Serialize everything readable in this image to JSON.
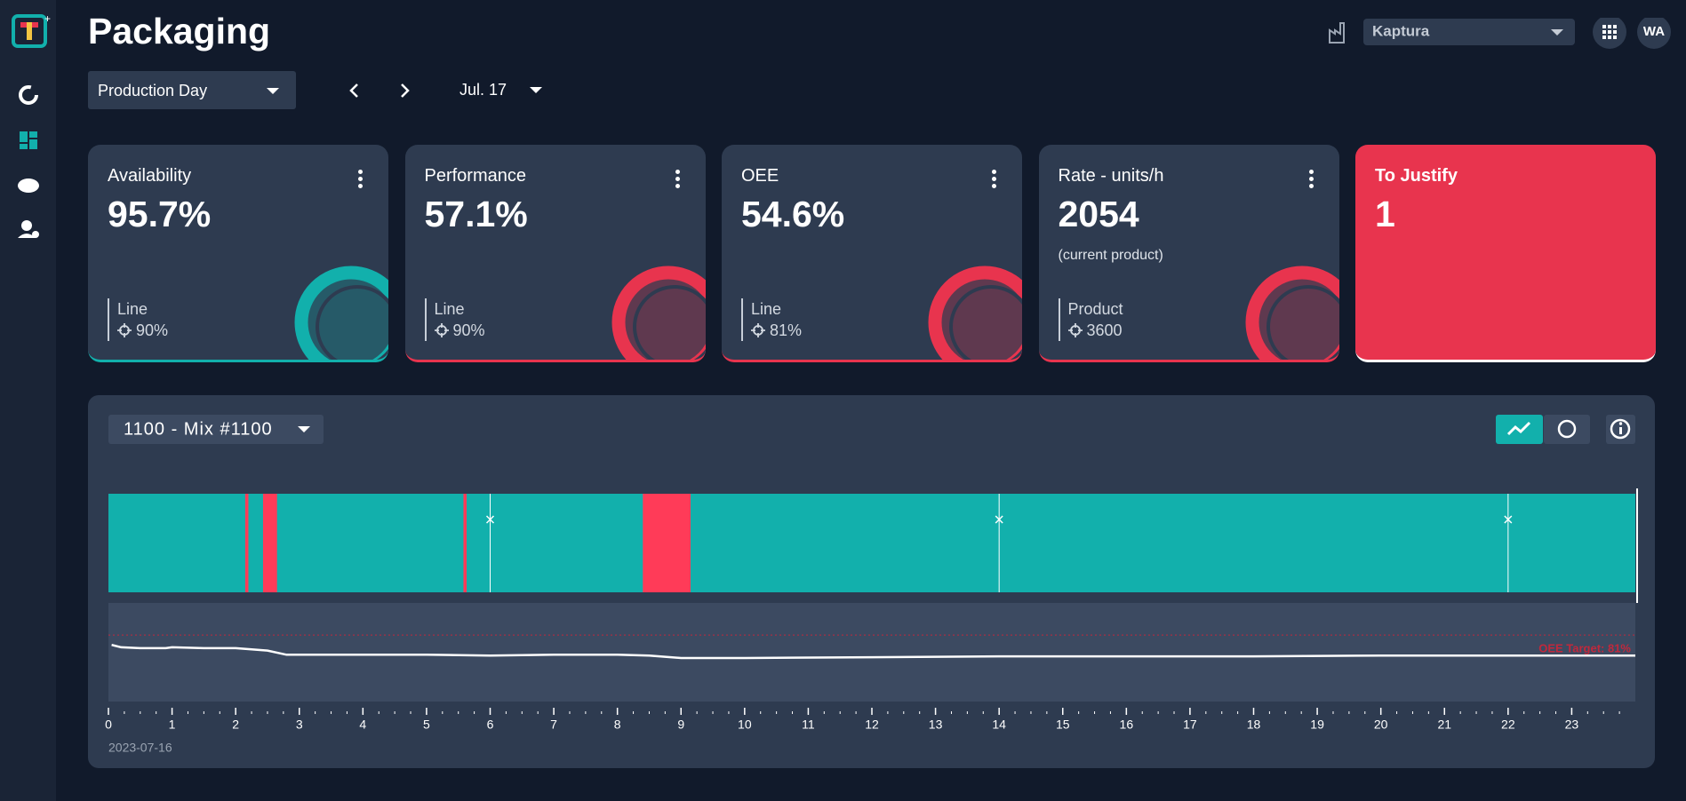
{
  "header": {
    "title": "Packaging",
    "site": "Kaptura",
    "user": "WA"
  },
  "filters": {
    "period": "Production Day",
    "date": "Jul. 17"
  },
  "cards": [
    {
      "title": "Availability",
      "value": "95.7%",
      "ref_label": "Line",
      "ref_value": "90%",
      "color": "#12b0ac"
    },
    {
      "title": "Performance",
      "value": "57.1%",
      "ref_label": "Line",
      "ref_value": "90%",
      "color": "#e8344e"
    },
    {
      "title": "OEE",
      "value": "54.6%",
      "ref_label": "Line",
      "ref_value": "81%",
      "color": "#e8344e"
    },
    {
      "title": "Rate - units/h",
      "value": "2054",
      "note": "(current product)",
      "ref_label": "Product",
      "ref_value": "3600",
      "color": "#e8344e"
    }
  ],
  "justify": {
    "title": "To Justify",
    "value": "1"
  },
  "panel": {
    "product": "1100 - Mix #1100",
    "date": "2023-07-16",
    "target_label": "OEE Target: 81%",
    "target": 81,
    "xlim": [
      0,
      24
    ],
    "xticks": [
      0,
      1,
      2,
      3,
      4,
      5,
      6,
      7,
      8,
      9,
      10,
      11,
      12,
      13,
      14,
      15,
      16,
      17,
      18,
      19,
      20,
      21,
      22,
      23
    ],
    "ylim": [
      0,
      120
    ],
    "run_color": "#12b0ac",
    "stop_color": "#ff3b58",
    "stops": [
      {
        "start": 2.15,
        "end": 2.2
      },
      {
        "start": 2.43,
        "end": 2.65
      },
      {
        "start": 5.58,
        "end": 5.63
      },
      {
        "start": 8.4,
        "end": 9.15
      }
    ],
    "markers": [
      6,
      14,
      22
    ],
    "trend": {
      "x": [
        0.05,
        0.2,
        0.5,
        0.9,
        1,
        1.5,
        2,
        2.5,
        2.8,
        3,
        4,
        5,
        6,
        7,
        8,
        8.5,
        9,
        10,
        12,
        14,
        16,
        18,
        20,
        22,
        24
      ],
      "y": [
        69,
        66,
        65,
        65,
        66,
        65,
        65,
        62,
        57,
        57,
        57,
        57,
        56,
        57,
        57,
        56,
        53,
        53,
        54,
        55,
        55,
        55,
        56,
        56,
        56
      ]
    }
  }
}
